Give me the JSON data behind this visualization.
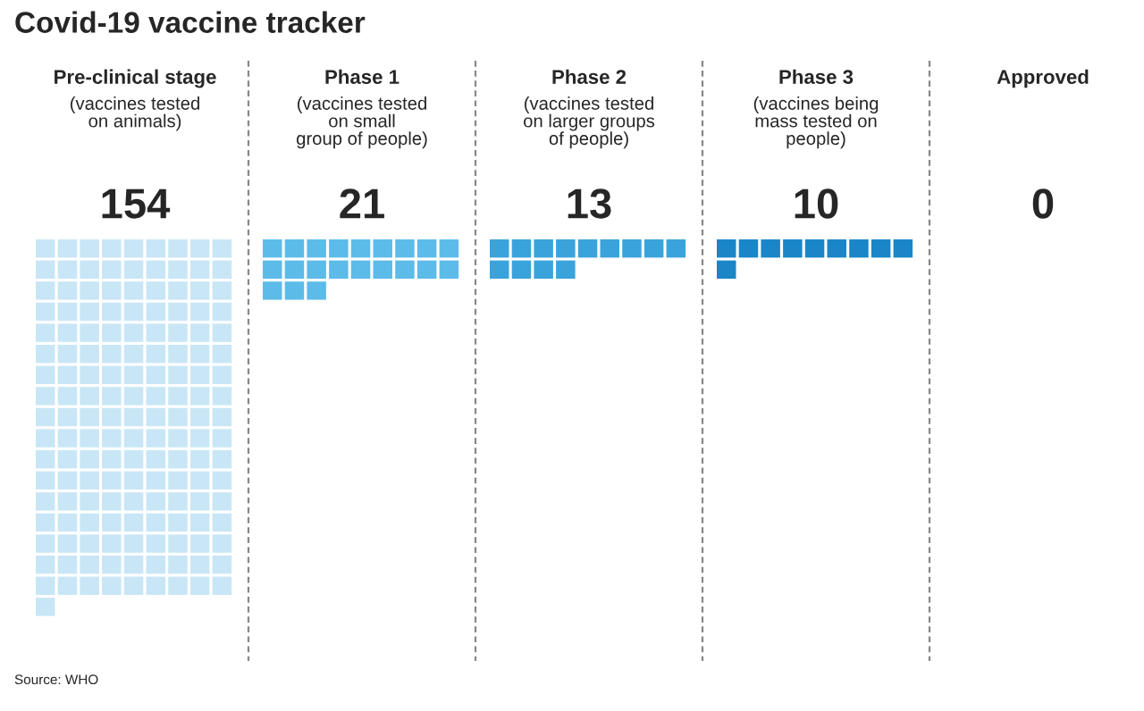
{
  "chart_data": {
    "type": "other",
    "title": "Covid-19 vaccine tracker",
    "categories": [
      "Pre-clinical stage",
      "Phase 1",
      "Phase 2",
      "Phase 3",
      "Approved"
    ],
    "values": [
      154,
      21,
      13,
      10,
      0
    ],
    "colors": [
      "#c8e6f6",
      "#5cbbe9",
      "#3ba3db",
      "#1a86c8",
      "#1a86c8"
    ],
    "data_labels": true,
    "annotations": [
      {
        "text": "(vaccines tested\non animals)",
        "x": "Pre-clinical stage"
      },
      {
        "text": "(vaccines tested\non small\ngroup of people)",
        "x": "Phase 1"
      },
      {
        "text": "(vaccines tested\non larger groups\nof people)",
        "x": "Phase 2"
      },
      {
        "text": "(vaccines being\nmass tested on\npeople)",
        "x": "Phase 3"
      },
      "Source: WHO"
    ]
  }
}
